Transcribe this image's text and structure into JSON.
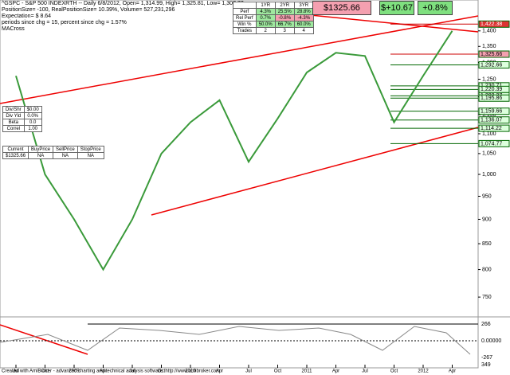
{
  "header": {
    "line1": "^GSPC - S&P 500 INDEXRTH -- Daily 6/8/2012, Open= 1,314.99, High= 1,325.81, Low= 1,307.77",
    "line2": "PositionSize= -100, RealPositionSize= 10.39%, Volume= 527,231,296",
    "line3": "Expectation= $ 8.64",
    "line4": "periods since chg = 15, percent since chg = 1.57%",
    "line5": "MACross"
  },
  "stats_table": {
    "columns": [
      "1YR",
      "2YR",
      "3YR"
    ],
    "rows": [
      [
        "Perf",
        "4.3%",
        "25.5%",
        "28.8%"
      ],
      [
        "Rel Perf",
        "0.7%",
        "-0.8%",
        "-4.3%"
      ],
      [
        "Win %",
        "50.0%",
        "66.7%",
        "60.0%"
      ],
      [
        "Trades",
        "2",
        "3",
        "4"
      ]
    ]
  },
  "price_boxes": [
    "$1325.66",
    "$+10.67",
    "+0.8%"
  ],
  "div_table": [
    [
      "Div/Shr",
      "$0.00"
    ],
    [
      "Div Yld",
      "0.0%"
    ],
    [
      "Beta",
      "0.0"
    ],
    [
      "Correl",
      "1.00"
    ]
  ],
  "price_table": {
    "columns": [
      "Current",
      "BuyPrice",
      "SellPrice",
      "StopPrice"
    ],
    "row": [
      "$1325.66",
      "NA",
      "NA",
      "NA"
    ]
  },
  "indicator": {
    "labels": [
      "266",
      "0.00000",
      "-267",
      "349"
    ]
  },
  "footer": "Created with AmiBroker - advanced charting and technical analysis software. http://www.amibroker.com",
  "chart_data": {
    "type": "line",
    "log_scale": true,
    "grid": false,
    "categories": [
      "Jul",
      "Oct",
      "2009",
      "Apr",
      "Jul",
      "Oct",
      "2010",
      "Apr",
      "Jul",
      "Oct",
      "2011",
      "Apr",
      "Jul",
      "Oct",
      "2012",
      "Apr"
    ],
    "series": [
      {
        "name": "^GSPC",
        "color": "#3a9a3a",
        "values": [
          1260,
          1000,
          900,
          800,
          900,
          1050,
          1130,
          1190,
          1030,
          1140,
          1270,
          1330,
          1320,
          1130,
          1260,
          1400
        ]
      }
    ],
    "ylim": [
      720,
      1450
    ],
    "yticks": [
      750,
      800,
      850,
      900,
      950,
      {
        "value": 1000,
        "label": "1,000"
      },
      {
        "value": 1050,
        "label": "1,050"
      },
      {
        "value": 1100,
        "label": "1,100"
      },
      {
        "value": 1150,
        "label": "1,150"
      },
      {
        "value": 1200,
        "label": "1,200"
      },
      {
        "value": 1250,
        "label": "1,250"
      },
      {
        "value": 1300,
        "label": "1,300"
      },
      {
        "value": 1350,
        "label": "1,350"
      },
      {
        "value": 1400,
        "label": "1,400"
      }
    ],
    "levels": [
      {
        "value": 1422.38,
        "label": "1,422.38"
      },
      {
        "value": 1325.66,
        "label": "1,325.66"
      },
      {
        "value": 1292.66,
        "label": "1,292.66"
      },
      {
        "value": 1230.71,
        "label": "1,230.71"
      },
      {
        "value": 1220.39,
        "label": "1,220.39"
      },
      {
        "value": 1202.37,
        "label": "1,202.37"
      },
      {
        "value": 1195.86,
        "label": "1,195.86"
      },
      {
        "value": 1159.66,
        "label": "1,159.66"
      },
      {
        "value": 1136.07,
        "label": "1,136.07"
      },
      {
        "value": 1114.22,
        "label": "1,114.22"
      },
      {
        "value": 1074.77,
        "label": "1,074.77"
      }
    ]
  }
}
